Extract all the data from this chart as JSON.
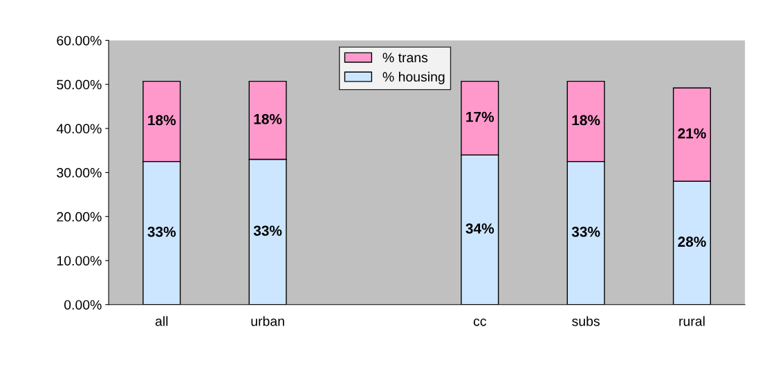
{
  "chart_data": {
    "type": "bar",
    "stacked": true,
    "categories": [
      "all",
      "urban",
      null,
      "cc",
      "subs",
      "rural"
    ],
    "series": [
      {
        "name": "% housing",
        "color": "#cce6ff",
        "values": [
          32.5,
          33.0,
          null,
          34.0,
          32.5,
          28.0
        ],
        "value_labels": [
          "33%",
          "33%",
          null,
          "34%",
          "33%",
          "28%"
        ]
      },
      {
        "name": "% trans",
        "color": "#ff99cc",
        "values": [
          18.2,
          17.7,
          null,
          16.7,
          18.2,
          21.2
        ],
        "value_labels": [
          "18%",
          "18%",
          null,
          "17%",
          "18%",
          "21%"
        ]
      }
    ],
    "ylim": [
      0,
      60
    ],
    "yticks": [
      {
        "value": 0,
        "label": "0.00%"
      },
      {
        "value": 10,
        "label": "10.00%"
      },
      {
        "value": 20,
        "label": "20.00%"
      },
      {
        "value": 30,
        "label": "30.00%"
      },
      {
        "value": 40,
        "label": "40.00%"
      },
      {
        "value": 50,
        "label": "50.00%"
      },
      {
        "value": 60,
        "label": "60.00%"
      }
    ],
    "grid": false,
    "legend": "top"
  }
}
